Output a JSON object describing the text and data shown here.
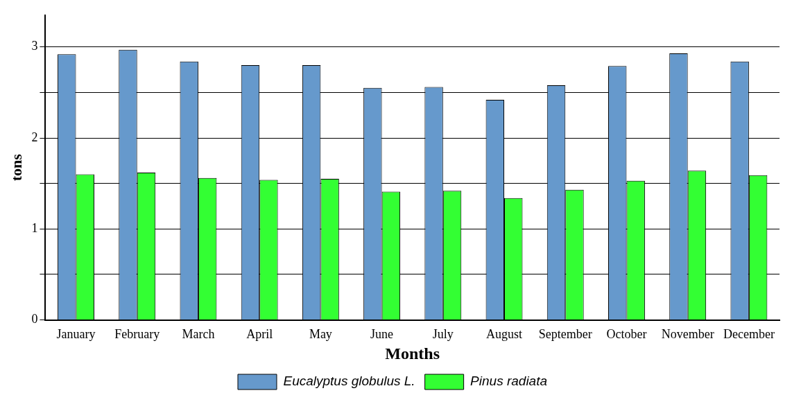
{
  "chart_data": {
    "type": "bar",
    "xlabel": "Months",
    "ylabel": "tons",
    "categories": [
      "January",
      "February",
      "March",
      "April",
      "May",
      "June",
      "July",
      "August",
      "September",
      "October",
      "November",
      "December"
    ],
    "series": [
      {
        "name": "Eucalyptus globulus L.",
        "color": "#6699cc",
        "values": [
          2.92,
          2.97,
          2.84,
          2.8,
          2.8,
          2.55,
          2.56,
          2.42,
          2.58,
          2.79,
          2.93,
          2.84
        ]
      },
      {
        "name": "Pinus radiata",
        "color": "#33ff33",
        "values": [
          1.6,
          1.62,
          1.56,
          1.54,
          1.55,
          1.41,
          1.42,
          1.34,
          1.43,
          1.53,
          1.64,
          1.59
        ]
      }
    ],
    "ylim": [
      0,
      3.35
    ],
    "yticks": [
      0,
      {
        "value": 0.5,
        "label": null
      },
      1,
      {
        "value": 1.5,
        "label": null
      },
      2,
      {
        "value": 2.5,
        "label": null
      },
      3
    ],
    "grid": "y",
    "legend": "bottom"
  }
}
